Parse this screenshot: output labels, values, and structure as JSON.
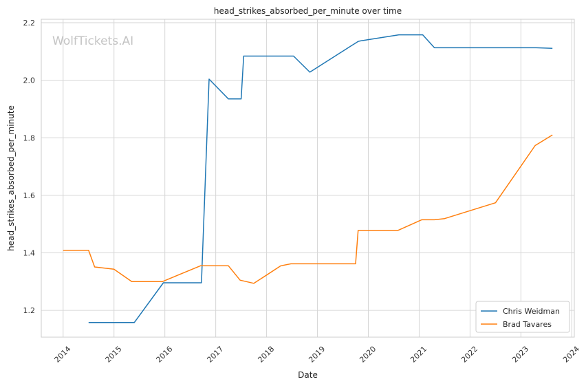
{
  "chart_data": {
    "type": "line",
    "title": "head_strikes_absorbed_per_minute over time",
    "xlabel": "Date",
    "ylabel": "head_strikes_absorbed_per_minute",
    "watermark": "WolfTickets.AI",
    "xlim": [
      2013.57,
      2024.05
    ],
    "ylim": [
      1.107,
      2.212
    ],
    "x_ticks": [
      2014,
      2015,
      2016,
      2017,
      2018,
      2019,
      2020,
      2021,
      2022,
      2023,
      2024
    ],
    "x_tick_labels": [
      "2014",
      "2015",
      "2016",
      "2017",
      "2018",
      "2019",
      "2020",
      "2021",
      "2022",
      "2023",
      "2024"
    ],
    "y_ticks": [
      1.2,
      1.4,
      1.6,
      1.8,
      2.0,
      2.2
    ],
    "y_tick_labels": [
      "1.2",
      "1.4",
      "1.6",
      "1.8",
      "2.0",
      "2.2"
    ],
    "grid": true,
    "legend_position": "bottom-right",
    "series": [
      {
        "name": "Chris Weidman",
        "color": "#1f77b4",
        "x": [
          2014.5,
          2015.4,
          2015.97,
          2016.72,
          2016.87,
          2017.25,
          2017.5,
          2017.55,
          2018.53,
          2018.85,
          2019.8,
          2019.85,
          2020.6,
          2021.07,
          2021.3,
          2022.55,
          2023.3,
          2023.62
        ],
        "y": [
          1.158,
          1.158,
          1.296,
          1.296,
          2.004,
          1.935,
          1.935,
          2.084,
          2.084,
          2.028,
          2.135,
          2.137,
          2.158,
          2.158,
          2.113,
          2.113,
          2.113,
          2.111
        ]
      },
      {
        "name": "Brad Tavares",
        "color": "#ff7f0e",
        "x": [
          2014.0,
          2014.5,
          2014.62,
          2015.0,
          2015.35,
          2015.95,
          2016.7,
          2017.25,
          2017.48,
          2017.75,
          2018.28,
          2018.48,
          2019.75,
          2019.8,
          2020.58,
          2021.05,
          2021.3,
          2021.5,
          2022.5,
          2023.28,
          2023.62
        ],
        "y": [
          1.409,
          1.409,
          1.351,
          1.343,
          1.3,
          1.3,
          1.355,
          1.355,
          1.305,
          1.294,
          1.355,
          1.362,
          1.362,
          1.478,
          1.478,
          1.515,
          1.515,
          1.519,
          1.574,
          1.773,
          1.81
        ]
      }
    ]
  }
}
